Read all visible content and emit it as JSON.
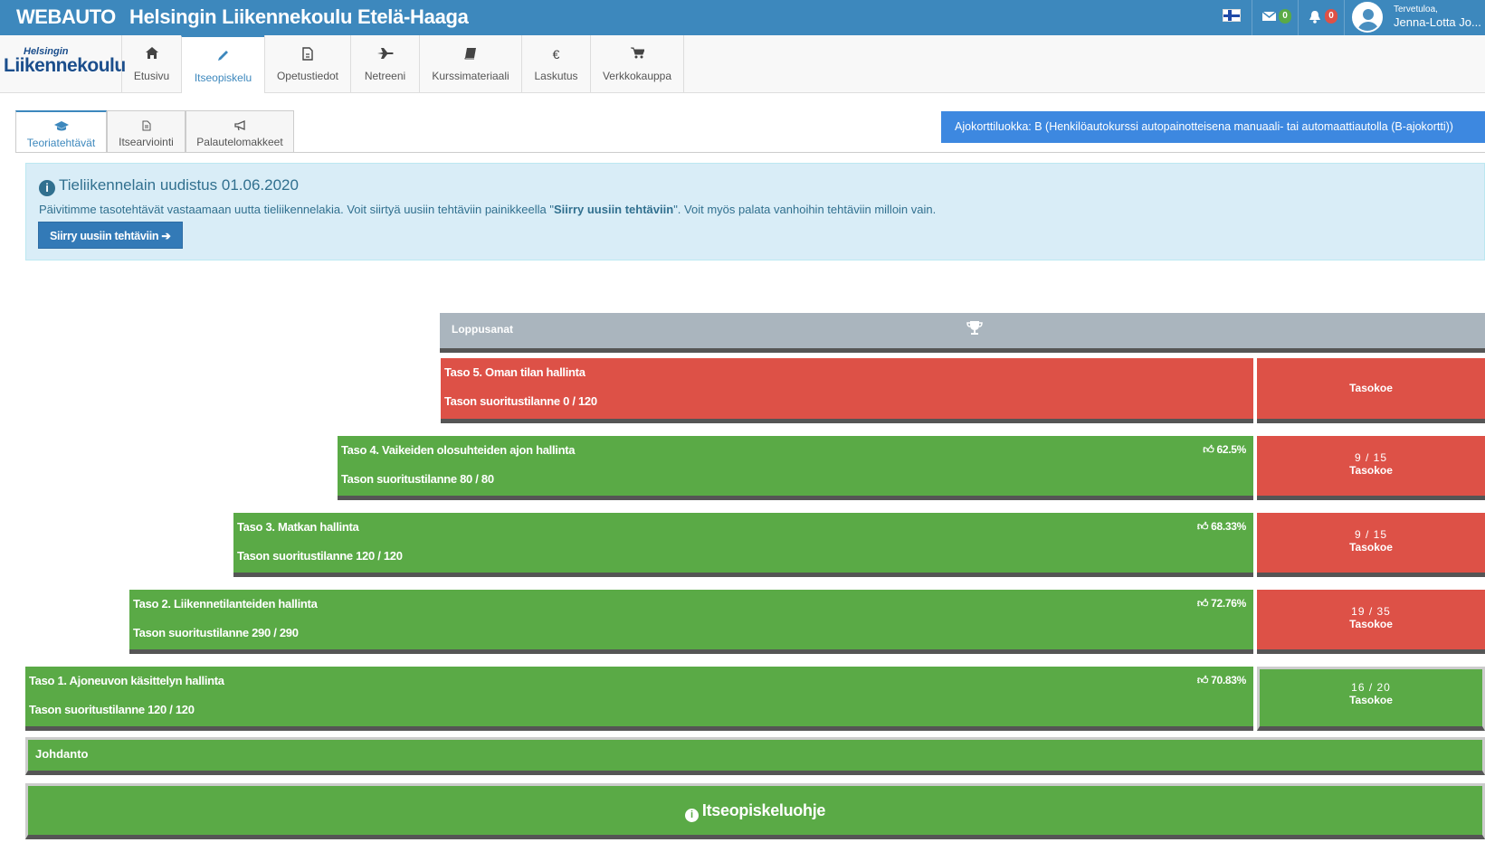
{
  "topbar": {
    "brand": "WEBAUTO",
    "school": "Helsingin Liikennekoulu Etelä-Haaga",
    "messages_count": "0",
    "notifications_count": "0",
    "welcome": "Tervetuloa,",
    "username": "Jenna-Lotta Jo...",
    "colors": {
      "bar": "#3d88bd",
      "msg_badge": "#5aaa46",
      "notif_badge": "#dd5147"
    }
  },
  "navbar": {
    "logo_small": "Helsingin",
    "logo_big": "Liikennekoulu",
    "items": [
      {
        "label": "Etusivu",
        "icon": "home-icon"
      },
      {
        "label": "Itseopiskelu",
        "icon": "pencil-icon"
      },
      {
        "label": "Opetustiedot",
        "icon": "document-icon"
      },
      {
        "label": "Netreeni",
        "icon": "plane-icon"
      },
      {
        "label": "Kurssimateriaali",
        "icon": "book-icon"
      },
      {
        "label": "Laskutus",
        "icon": "euro-icon"
      },
      {
        "label": "Verkkokauppa",
        "icon": "cart-icon"
      }
    ],
    "active": "Itseopiskelu"
  },
  "subtabs": {
    "items": [
      {
        "label": "Teoriatehtävät",
        "icon": "graduation-cap-icon"
      },
      {
        "label": "Itsearviointi",
        "icon": "file-icon"
      },
      {
        "label": "Palautelomakkeet",
        "icon": "megaphone-icon"
      }
    ],
    "active": "Teoriatehtävät"
  },
  "licence": "Ajokorttiluokka: B (Henkilöautokurssi autopainotteisena manuaali- tai automaattiautolla (B-ajokortti))",
  "alert": {
    "title": "Tieliikennelain uudistus 01.06.2020",
    "text_before": "Päivitimme tasotehtävät vastaamaan uutta tieliikennelakia. Voit siirtyä uusiin tehtäviin painikkeella \"",
    "text_bold": "Siirry uusiin tehtäviin",
    "text_after": "\". Voit myös palata vanhoihin tehtäviin milloin vain.",
    "button": "Siirry uusiin tehtäviin ➔"
  },
  "pyramid": {
    "final": "Loppusanat",
    "levels": [
      {
        "title": "Taso 5. Oman tilan hallinta",
        "progress": "Tason suoritustilanne 0 / 120",
        "percent": "",
        "test_count": "",
        "test_label": "Tasokoe",
        "status": "red"
      },
      {
        "title": "Taso 4. Vaikeiden olosuhteiden ajon hallinta",
        "progress": "Tason suoritustilanne 80 / 80",
        "percent": "62.5%",
        "test_count": "9 / 15",
        "test_label": "Tasokoe",
        "status": "green"
      },
      {
        "title": "Taso 3. Matkan hallinta",
        "progress": "Tason suoritustilanne 120 / 120",
        "percent": "68.33%",
        "test_count": "9 / 15",
        "test_label": "Tasokoe",
        "status": "green"
      },
      {
        "title": "Taso 2. Liikennetilanteiden hallinta",
        "progress": "Tason suoritustilanne 290 / 290",
        "percent": "72.76%",
        "test_count": "19 / 35",
        "test_label": "Tasokoe",
        "status": "green"
      },
      {
        "title": "Taso 1. Ajoneuvon käsittelyn hallinta",
        "progress": "Tason suoritustilanne 120 / 120",
        "percent": "70.83%",
        "test_count": "16 / 20",
        "test_label": "Tasokoe",
        "status": "green"
      }
    ],
    "intro": "Johdanto",
    "guide": "Itseopiskeluohje",
    "colors": {
      "green": "#5aaa46",
      "red": "#dd5147",
      "grey": "#aab5be"
    }
  }
}
